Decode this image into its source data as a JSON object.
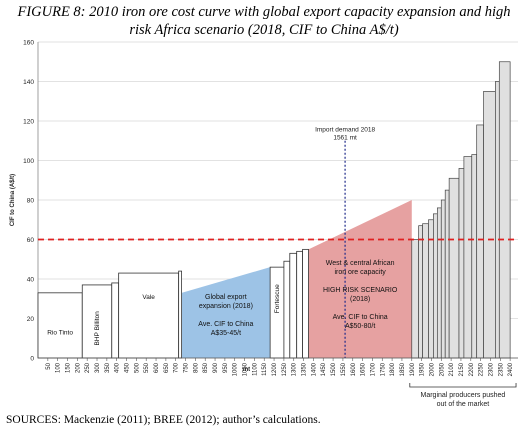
{
  "chart_data": {
    "type": "bar",
    "title": "FIGURE 8: 2010 iron ore cost curve with global export capacity expansion and high risk Africa scenario (2018, CIF to China A$/t)",
    "xlabel": "mt",
    "ylabel": "CIF to China (A$/t)",
    "ylim": [
      0,
      160
    ],
    "yticks": [
      0,
      20,
      40,
      60,
      80,
      100,
      120,
      140,
      160
    ],
    "xlim": [
      0,
      2440
    ],
    "xticks": [
      50,
      100,
      150,
      200,
      250,
      300,
      350,
      400,
      450,
      500,
      550,
      600,
      650,
      700,
      750,
      800,
      850,
      900,
      950,
      1000,
      1050,
      1100,
      1150,
      1200,
      1250,
      1300,
      1350,
      1400,
      1450,
      1500,
      1550,
      1600,
      1650,
      1700,
      1750,
      1800,
      1850,
      1900,
      1950,
      2000,
      2050,
      2100,
      2150,
      2200,
      2250,
      2300,
      2350,
      2400
    ],
    "producers": [
      {
        "label": "Rio Tinto",
        "x0": 0,
        "x1": 225,
        "value": 33
      },
      {
        "label": "BHP Billiton",
        "x0": 225,
        "x1": 375,
        "value": 37
      },
      {
        "label": "",
        "x0": 375,
        "x1": 410,
        "value": 38
      },
      {
        "label": "Vale",
        "x0": 410,
        "x1": 715,
        "value": 43
      },
      {
        "label": "",
        "x0": 715,
        "x1": 730,
        "value": 44
      },
      {
        "label": "Fortescue",
        "x0": 1180,
        "x1": 1250,
        "value": 46
      },
      {
        "label": "",
        "x0": 1250,
        "x1": 1280,
        "value": 49
      },
      {
        "label": "",
        "x0": 1280,
        "x1": 1315,
        "value": 53
      },
      {
        "label": "",
        "x0": 1315,
        "x1": 1345,
        "value": 54
      },
      {
        "label": "",
        "x0": 1345,
        "x1": 1375,
        "value": 55
      }
    ],
    "marginal": [
      {
        "x0": 1900,
        "x1": 1935,
        "value": 60
      },
      {
        "x0": 1935,
        "x1": 1955,
        "value": 67
      },
      {
        "x0": 1955,
        "x1": 1985,
        "value": 68
      },
      {
        "x0": 1985,
        "x1": 2010,
        "value": 70
      },
      {
        "x0": 2010,
        "x1": 2030,
        "value": 73
      },
      {
        "x0": 2030,
        "x1": 2050,
        "value": 76
      },
      {
        "x0": 2050,
        "x1": 2070,
        "value": 80
      },
      {
        "x0": 2070,
        "x1": 2090,
        "value": 85
      },
      {
        "x0": 2090,
        "x1": 2140,
        "value": 91
      },
      {
        "x0": 2140,
        "x1": 2165,
        "value": 96
      },
      {
        "x0": 2165,
        "x1": 2205,
        "value": 102
      },
      {
        "x0": 2205,
        "x1": 2230,
        "value": 103
      },
      {
        "x0": 2230,
        "x1": 2265,
        "value": 118
      },
      {
        "x0": 2265,
        "x1": 2325,
        "value": 135
      },
      {
        "x0": 2325,
        "x1": 2345,
        "value": 140
      },
      {
        "x0": 2345,
        "x1": 2400,
        "value": 150
      }
    ],
    "global_expansion": {
      "x0": 730,
      "x1": 1180,
      "y_start": 33,
      "y_end": 46,
      "color": "#9dc3e6",
      "label_lines": [
        "Global export",
        "expansion (2018)",
        "",
        "Ave. CIF to China",
        "A$35-45/t"
      ]
    },
    "africa": {
      "x0": 1375,
      "x1": 1900,
      "y_start": 55,
      "y_end": 80,
      "color": "#e6a1a1",
      "label_lines": [
        "West & central African",
        "iron ore capacity",
        "",
        "HIGH RISK SCENARIO",
        "(2018)",
        "",
        "Ave. CIF to China",
        "A$50-80/t"
      ]
    },
    "threshold": {
      "value": 60,
      "color": "#e02020"
    },
    "import_demand": {
      "x": 1561,
      "label_lines": [
        "Import demand 2018",
        "1561 mt"
      ],
      "color": "#1f2a8a"
    },
    "marginal_annotation": [
      "Marginal producers pushed",
      "out of the market"
    ],
    "grid": true
  },
  "source_text": "SOURCES: Mackenzie (2011); BREE (2012); author’s calculations."
}
